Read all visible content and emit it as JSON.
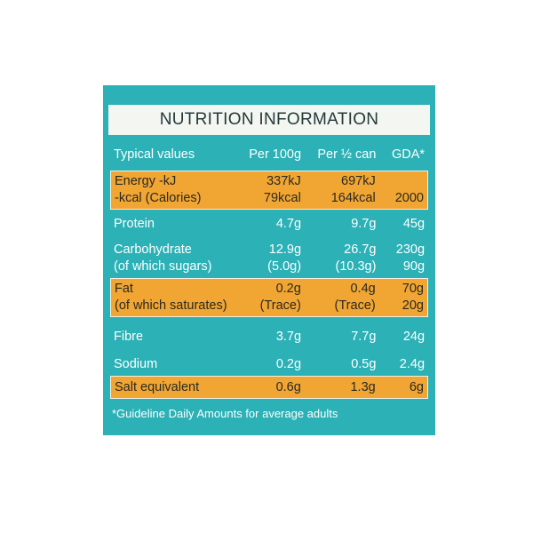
{
  "title": "NUTRITION INFORMATION",
  "table": {
    "header": [
      "Typical values",
      "Per 100g",
      "Per ½ can",
      "GDA*"
    ],
    "rows": [
      [
        [
          "Energy -kJ",
          "-kcal (Calories)"
        ],
        [
          "337kJ",
          "79kcal"
        ],
        [
          "697kJ",
          "164kcal"
        ],
        [
          "2000"
        ]
      ],
      [
        [
          "Protein"
        ],
        [
          "4.7g"
        ],
        [
          "9.7g"
        ],
        [
          "45g"
        ]
      ],
      [
        [
          "Carbohydrate",
          "(of which sugars)"
        ],
        [
          "12.9g",
          "(5.0g)"
        ],
        [
          "26.7g",
          "(10.3g)"
        ],
        [
          "230g",
          "90g"
        ]
      ],
      [
        [
          "Fat",
          "(of which saturates)"
        ],
        [
          "0.2g",
          "(Trace)"
        ],
        [
          "0.4g",
          "(Trace)"
        ],
        [
          "70g",
          "20g"
        ]
      ],
      [
        [
          "Fibre"
        ],
        [
          "3.7g"
        ],
        [
          "7.7g"
        ],
        [
          "24g"
        ]
      ],
      [
        [
          "Sodium"
        ],
        [
          "0.2g"
        ],
        [
          "0.5g"
        ],
        [
          "2.4g"
        ]
      ],
      [
        [
          "Salt equivalent"
        ],
        [
          "0.6g"
        ],
        [
          "1.3g"
        ],
        [
          "6g"
        ]
      ]
    ]
  },
  "footnote": "*Guideline Daily Amounts for average adults"
}
